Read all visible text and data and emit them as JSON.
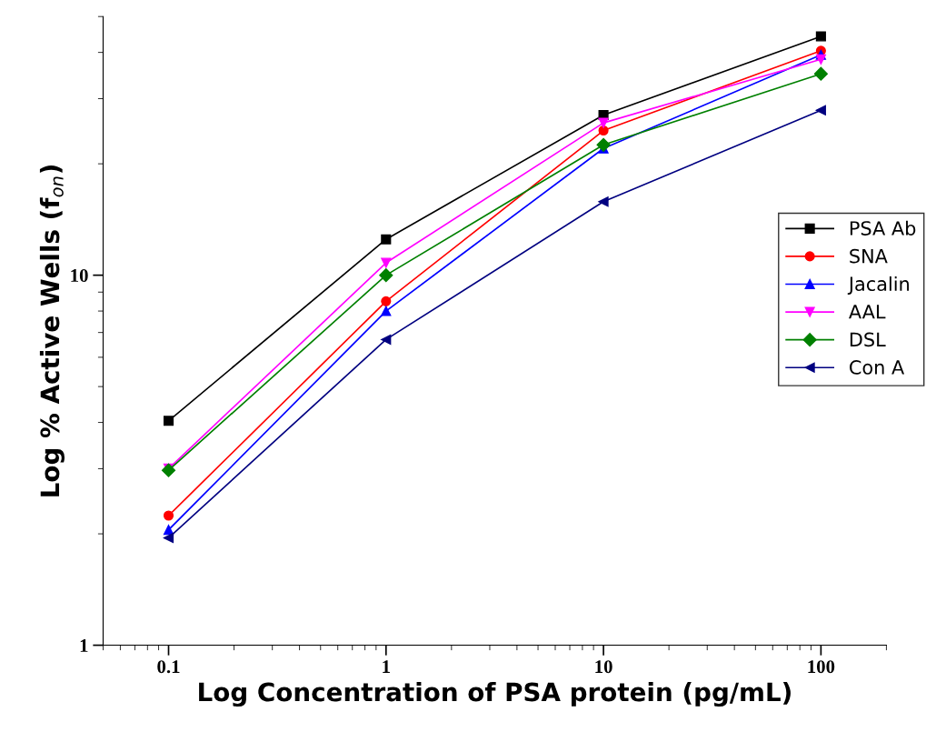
{
  "chart_data": {
    "type": "line",
    "xlabel": "Log Concentration of PSA protein (pg/mL)",
    "ylabel": "Log % Active Wells (f$_{on}$)",
    "x": [
      0.1,
      1,
      10,
      100
    ],
    "log": "xy",
    "xlim": [
      0.05,
      200
    ],
    "ylim": [
      1,
      50
    ],
    "xticks": [
      0.1,
      1,
      10,
      100
    ],
    "yticks": [
      1,
      10
    ],
    "grid": false,
    "legend": "right",
    "line_style": "solid",
    "series": [
      {
        "name": "PSA Ab",
        "color": "#000000",
        "marker": "square",
        "values": [
          4.04,
          12.5,
          27.1,
          44.2
        ]
      },
      {
        "name": "SNA",
        "color": "#ff0000",
        "marker": "circle",
        "values": [
          2.24,
          8.5,
          24.6,
          40.4
        ]
      },
      {
        "name": "Jacalin",
        "color": "#0000ff",
        "marker": "triangle",
        "values": [
          2.05,
          8.0,
          22.0,
          39.4
        ]
      },
      {
        "name": "AAL",
        "color": "#ff00ff",
        "marker": "triangle_down",
        "values": [
          3.0,
          10.8,
          25.8,
          38.3
        ]
      },
      {
        "name": "DSL",
        "color": "#008000",
        "marker": "diamond",
        "values": [
          2.97,
          10.0,
          22.5,
          35.0
        ]
      },
      {
        "name": "Con A",
        "color": "#000080",
        "marker": "triangle_left",
        "values": [
          1.95,
          6.7,
          15.8,
          27.9
        ]
      }
    ]
  }
}
